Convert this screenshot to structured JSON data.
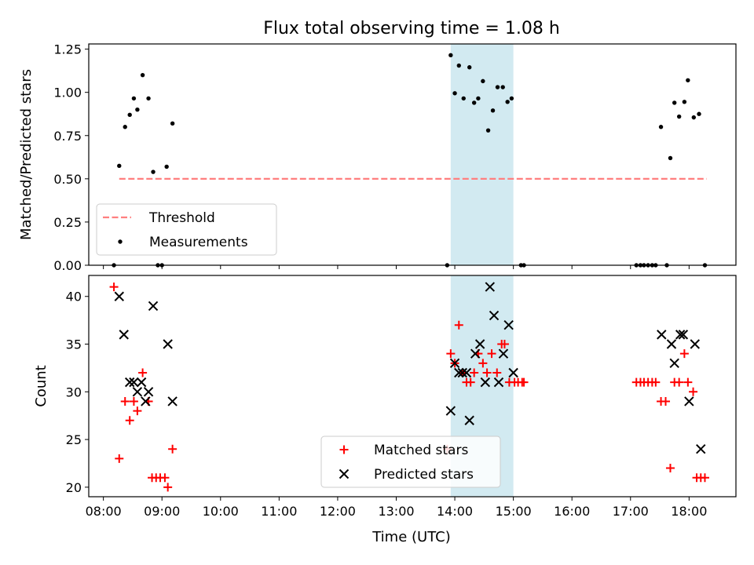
{
  "title": "Flux total observing time = 1.08 h",
  "colors": {
    "threshold": "#ff7f7f",
    "shade": "#add8e6",
    "matched": "#ff0000",
    "predicted": "#000000",
    "measurement": "#000000"
  },
  "chart_data": [
    {
      "type": "scatter",
      "panel": "top",
      "ylabel": "Matched/Predicted stars",
      "x_unit": "hours (UTC)",
      "xlim": [
        7.75,
        18.8
      ],
      "ylim": [
        0,
        1.28
      ],
      "yticks": [
        0,
        0.25,
        0.5,
        0.75,
        1.0,
        1.25
      ],
      "ytick_labels": [
        "0.00",
        "0.25",
        "0.50",
        "0.75",
        "1.00",
        "1.25"
      ],
      "shaded_span": [
        13.93,
        15.0
      ],
      "threshold": {
        "name": "Threshold",
        "value": 0.5,
        "x_range": [
          8.27,
          18.3
        ],
        "style": "dashed"
      },
      "legend": {
        "position": "lower-left",
        "entries": [
          "Threshold",
          "Measurements"
        ]
      },
      "series": [
        {
          "name": "Measurements",
          "x": [
            8.18,
            8.27,
            8.37,
            8.45,
            8.52,
            8.58,
            8.67,
            8.77,
            8.85,
            8.93,
            9.0,
            9.08,
            9.18,
            13.87,
            13.93,
            14.0,
            14.07,
            14.15,
            14.25,
            14.33,
            14.4,
            14.48,
            14.57,
            14.65,
            14.73,
            14.82,
            14.9,
            14.97,
            15.13,
            15.18,
            17.1,
            17.17,
            17.23,
            17.3,
            17.37,
            17.43,
            17.52,
            17.62,
            17.68,
            17.75,
            17.83,
            17.92,
            17.98,
            18.08,
            18.17,
            18.27
          ],
          "y": [
            0,
            0.575,
            0.8,
            0.87,
            0.965,
            0.9,
            1.1,
            0.965,
            0.54,
            0,
            0,
            0.57,
            0.82,
            0,
            1.215,
            0.995,
            1.155,
            0.965,
            1.145,
            0.94,
            0.965,
            1.065,
            0.78,
            0.895,
            1.03,
            1.03,
            0.945,
            0.965,
            0,
            0,
            0,
            0,
            0,
            0,
            0,
            0,
            0.8,
            0,
            0.62,
            0.94,
            0.86,
            0.945,
            1.07,
            0.855,
            0.875,
            0
          ]
        }
      ]
    },
    {
      "type": "scatter",
      "panel": "bottom",
      "ylabel": "Count",
      "xlabel": "Time (UTC)",
      "x_unit": "hours (UTC)",
      "xlim": [
        7.75,
        18.8
      ],
      "ylim": [
        19,
        42.2
      ],
      "yticks": [
        20,
        25,
        30,
        35,
        40
      ],
      "xticks": [
        8,
        9,
        10,
        11,
        12,
        13,
        14,
        15,
        16,
        17,
        18
      ],
      "xtick_labels": [
        "08:00",
        "09:00",
        "10:00",
        "11:00",
        "12:00",
        "13:00",
        "14:00",
        "15:00",
        "16:00",
        "17:00",
        "18:00"
      ],
      "shaded_span": [
        13.93,
        15.0
      ],
      "legend": {
        "position": "lower-center",
        "entries": [
          "Matched stars",
          "Predicted stars"
        ]
      },
      "series": [
        {
          "name": "Matched stars",
          "marker": "plus",
          "x": [
            8.18,
            8.27,
            8.37,
            8.45,
            8.52,
            8.58,
            8.67,
            8.77,
            8.83,
            8.9,
            8.97,
            9.05,
            9.1,
            9.18,
            13.87,
            13.93,
            14.0,
            14.07,
            14.13,
            14.2,
            14.27,
            14.33,
            14.4,
            14.48,
            14.55,
            14.63,
            14.72,
            14.8,
            14.85,
            14.93,
            15.02,
            15.08,
            15.15,
            15.18,
            17.1,
            17.17,
            17.23,
            17.3,
            17.37,
            17.43,
            17.52,
            17.6,
            17.68,
            17.75,
            17.83,
            17.92,
            17.98,
            18.07,
            18.13,
            18.2,
            18.27
          ],
          "y": [
            41,
            23,
            29,
            27,
            29,
            28,
            32,
            29,
            21,
            21,
            21,
            21,
            20,
            24,
            24,
            34,
            33,
            37,
            32,
            31,
            31,
            32,
            34,
            33,
            32,
            34,
            32,
            35,
            35,
            31,
            31,
            31,
            31,
            31,
            31,
            31,
            31,
            31,
            31,
            31,
            29,
            29,
            22,
            31,
            31,
            34,
            31,
            30,
            21,
            21,
            21
          ]
        },
        {
          "name": "Predicted stars",
          "marker": "x",
          "x": [
            8.27,
            8.35,
            8.45,
            8.52,
            8.58,
            8.65,
            8.72,
            8.77,
            8.85,
            9.1,
            9.18,
            13.93,
            14.0,
            14.07,
            14.13,
            14.2,
            14.25,
            14.35,
            14.43,
            14.52,
            14.6,
            14.67,
            14.75,
            14.83,
            14.92,
            15.0,
            17.53,
            17.7,
            17.75,
            17.85,
            17.9,
            18.0,
            18.1,
            18.2
          ],
          "y": [
            40,
            36,
            31,
            31,
            30,
            31,
            29,
            30,
            39,
            35,
            29,
            28,
            33,
            32,
            32,
            32,
            27,
            34,
            35,
            31,
            41,
            38,
            31,
            34,
            37,
            32,
            36,
            35,
            33,
            36,
            36,
            29,
            35,
            24
          ]
        }
      ]
    }
  ]
}
